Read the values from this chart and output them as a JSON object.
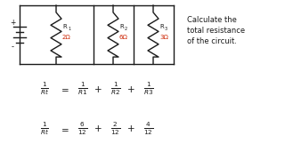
{
  "bg_color": "#ffffff",
  "text_color": "#1a1a1a",
  "red_color": "#cc2200",
  "circuit_color": "#1a1a1a",
  "title_line1": "Calculate the",
  "title_line2": "total resistance",
  "title_line3": "of the circuit.",
  "r1_val": "2Ω",
  "r2_val": "6Ω",
  "r3_val": "3Ω",
  "figsize": [
    3.2,
    1.8
  ],
  "dpi": 100
}
